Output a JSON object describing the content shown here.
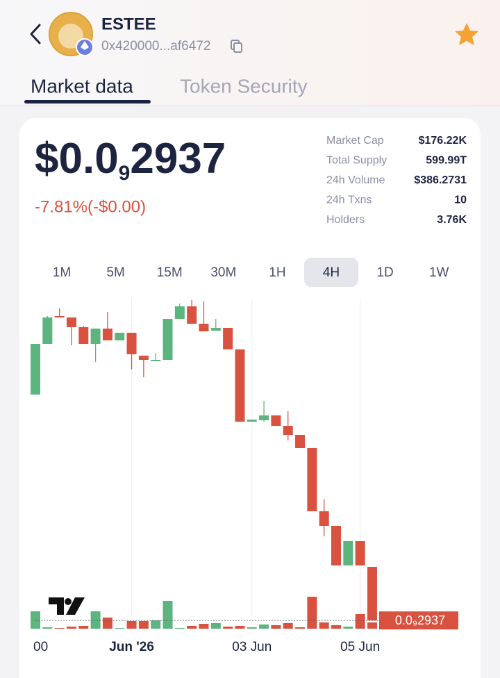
{
  "header": {
    "name": "ESTEE",
    "address": "0x420000...af6472"
  },
  "tabs": [
    "Market data",
    "Token Security"
  ],
  "price": {
    "prefix": "$0.0",
    "zeros": "9",
    "digits": "2937"
  },
  "change": "-7.81%(-$0.00)",
  "stats": [
    {
      "label": "Market Cap",
      "value": "$176.22K"
    },
    {
      "label": "Total Supply",
      "value": "599.99T"
    },
    {
      "label": "24h Volume",
      "value": "$386.2731"
    },
    {
      "label": "24h Txns",
      "value": "10"
    },
    {
      "label": "Holders",
      "value": "3.76K"
    }
  ],
  "timeframes": [
    "1M",
    "5M",
    "15M",
    "30M",
    "1H",
    "4H",
    "1D",
    "1W"
  ],
  "active_timeframe": "4H",
  "chart_data": {
    "type": "candlestick",
    "categories": [
      "00",
      null,
      null,
      null,
      null,
      null,
      null,
      null,
      "Jun '26",
      null,
      null,
      null,
      null,
      null,
      null,
      null,
      null,
      null,
      "03 Jun",
      null,
      null,
      null,
      null,
      null,
      null,
      null,
      null,
      "05 Jun",
      null
    ],
    "open": [
      9.44e-10,
      1.09e-09,
      1.17e-09,
      1.166e-09,
      1.138e-09,
      1.09e-09,
      1.134e-09,
      1.1e-09,
      1.122e-09,
      1.056e-09,
      1.044e-09,
      1.044e-09,
      1.162e-09,
      1.198e-09,
      1.148e-09,
      1.128e-09,
      1.136e-09,
      1.074e-09,
      8.66e-10,
      8.7e-10,
      8.84e-10,
      8.54e-10,
      8.28e-10,
      7.9e-10,
      6.08e-10,
      5.66e-10,
      4.52e-10,
      5.22e-10,
      4.48e-10
    ],
    "high": [
      1.09e-09,
      1.17e-09,
      1.192e-09,
      1.166e-09,
      1.142e-09,
      1.134e-09,
      1.182e-09,
      1.122e-09,
      1.122e-09,
      1.056e-09,
      1.064e-09,
      1.162e-09,
      1.206e-09,
      1.216e-09,
      1.212e-09,
      1.162e-09,
      1.136e-09,
      1.074e-09,
      8.72e-10,
      9.26e-10,
      8.84e-10,
      8.96e-10,
      8.28e-10,
      7.9e-10,
      6.42e-10,
      5.66e-10,
      5.22e-10,
      5.22e-10,
      4.48e-10
    ],
    "low": [
      9.44e-10,
      1.09e-09,
      1.166e-09,
      1.086e-09,
      1.09e-09,
      1.038e-09,
      1.1e-09,
      1.1e-09,
      1.016e-09,
      9.94e-10,
      1.044e-09,
      1.044e-09,
      1.162e-09,
      1.148e-09,
      1.128e-09,
      1.128e-09,
      1.074e-09,
      8.66e-10,
      8.66e-10,
      8.66e-10,
      8.54e-10,
      8.12e-10,
      7.9e-10,
      6.08e-10,
      5.36e-10,
      4.52e-10,
      4.52e-10,
      4.52e-10,
      2.937e-10
    ],
    "close": [
      1.09e-09,
      1.166e-09,
      1.166e-09,
      1.138e-09,
      1.09e-09,
      1.134e-09,
      1.1e-09,
      1.122e-09,
      1.06e-09,
      1.044e-09,
      1.044e-09,
      1.162e-09,
      1.198e-09,
      1.148e-09,
      1.126e-09,
      1.136e-09,
      1.074e-09,
      8.66e-10,
      8.72e-10,
      8.84e-10,
      8.54e-10,
      8.28e-10,
      7.9e-10,
      6.08e-10,
      5.66e-10,
      4.52e-10,
      5.22e-10,
      4.52e-10,
      2.937e-10
    ],
    "volumes": [
      25,
      2,
      1,
      3,
      4,
      25,
      16,
      1,
      11,
      11,
      12,
      40,
      1,
      4,
      7,
      8,
      3,
      4,
      2,
      6,
      5,
      8,
      2,
      46,
      9,
      5,
      3,
      21,
      9
    ],
    "ylim": [
      2.7e-10,
      1.22e-09
    ],
    "up_color": "#5cb57f",
    "down_color": "#d9523f",
    "last_price_label": "0.0₉2937"
  }
}
